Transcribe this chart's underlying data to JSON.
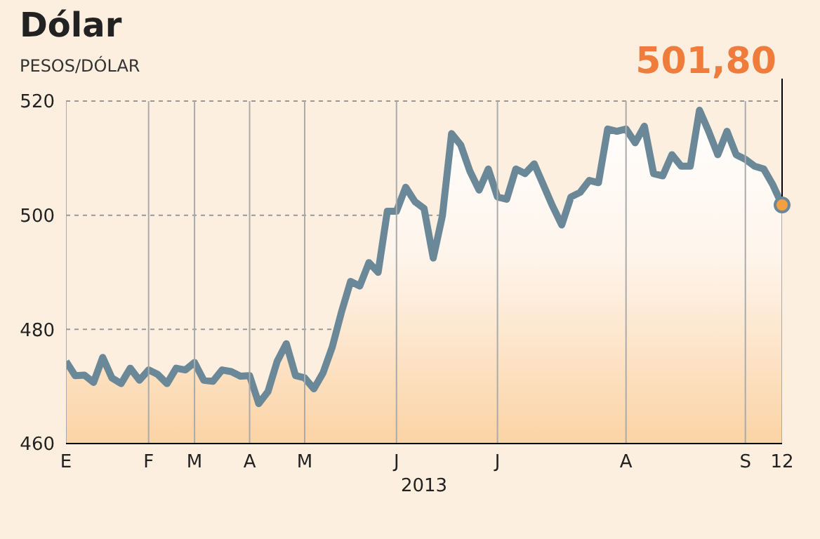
{
  "chart_data": {
    "type": "area",
    "title": "Dólar",
    "subtitle": "PESOS/DÓLAR",
    "xlabel": "2013",
    "categories": [
      "E",
      null,
      null,
      null,
      null,
      null,
      null,
      null,
      null,
      "F",
      null,
      null,
      null,
      null,
      "M",
      null,
      null,
      null,
      null,
      null,
      "A",
      null,
      null,
      null,
      null,
      null,
      "M",
      null,
      null,
      null,
      null,
      null,
      null,
      null,
      null,
      null,
      "J",
      null,
      null,
      null,
      null,
      null,
      null,
      null,
      null,
      null,
      null,
      "J",
      null,
      null,
      null,
      null,
      null,
      null,
      null,
      null,
      null,
      null,
      null,
      null,
      null,
      "A",
      null,
      null,
      null,
      null,
      null,
      null,
      null,
      null,
      null,
      null,
      null,
      null,
      "S",
      null,
      null,
      null,
      "12"
    ],
    "series": [
      {
        "color": "#6b8898",
        "values": [
          474.4,
          471.9,
          472,
          470.7,
          475.1,
          471.5,
          470.5,
          473.2,
          471.1,
          472.9,
          472.1,
          470.5,
          473.2,
          472.9,
          474.2,
          471.1,
          470.9,
          472.9,
          472.6,
          471.8,
          471.9,
          467,
          469.1,
          474.4,
          477.5,
          471.9,
          471.5,
          469.6,
          472.4,
          476.9,
          483,
          488.4,
          487.6,
          491.7,
          490,
          500.7,
          500.7,
          504.9,
          502.4,
          501.2,
          492.5,
          499.9,
          514.3,
          512.3,
          507.7,
          504.4,
          508.1,
          503.2,
          502.8,
          508.1,
          507.3,
          509,
          505.3,
          501.6,
          498.3,
          503.2,
          504,
          506.1,
          505.7,
          515.1,
          514.7,
          515.1,
          512.7,
          515.6,
          507.3,
          506.9,
          510.6,
          508.6,
          508.6,
          518.4,
          514.7,
          510.6,
          514.7,
          510.6,
          509.8,
          508.6,
          508.1,
          505.3,
          501.8
        ]
      }
    ],
    "ylim": [
      460,
      520
    ],
    "yticks": [
      460,
      480,
      500,
      520
    ],
    "grid": true,
    "annotations": [
      {
        "text": "501,80",
        "x": "12",
        "y": 501.8
      }
    ]
  }
}
